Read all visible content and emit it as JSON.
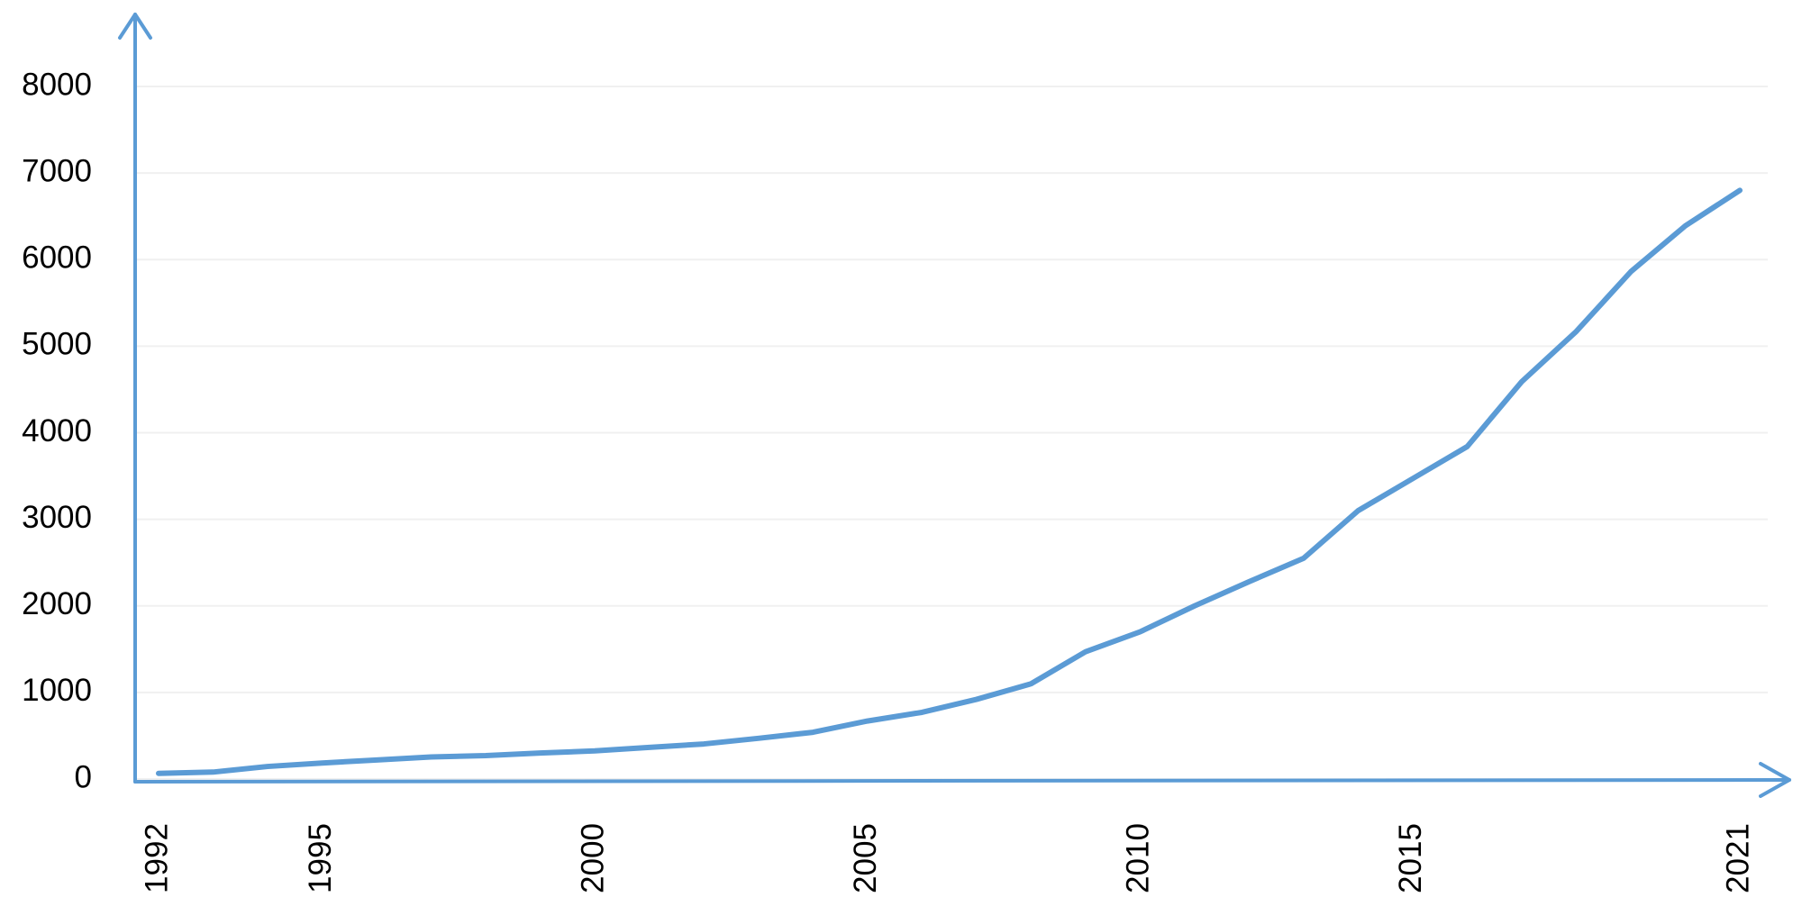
{
  "chart_data": {
    "type": "line",
    "x": [
      1992,
      1993,
      1994,
      1995,
      1996,
      1997,
      1998,
      1999,
      2000,
      2001,
      2002,
      2003,
      2004,
      2005,
      2006,
      2007,
      2008,
      2009,
      2010,
      2011,
      2012,
      2013,
      2014,
      2015,
      2016,
      2017,
      2018,
      2019,
      2020,
      2021
    ],
    "values": [
      65,
      80,
      145,
      185,
      220,
      255,
      270,
      300,
      325,
      365,
      405,
      470,
      540,
      670,
      770,
      920,
      1100,
      1470,
      1700,
      2000,
      2280,
      2550,
      3100,
      3470,
      3840,
      4590,
      5170,
      5860,
      6390,
      6800
    ],
    "color": "#5b9bd5",
    "xlim": [
      1992,
      2021
    ],
    "xticks": [
      1992,
      1995,
      2000,
      2005,
      2010,
      2015,
      2021
    ],
    "ylim": [
      0,
      8000
    ],
    "yticks": [
      0,
      1000,
      2000,
      3000,
      4000,
      5000,
      6000,
      7000,
      8000
    ],
    "grid": true
  }
}
